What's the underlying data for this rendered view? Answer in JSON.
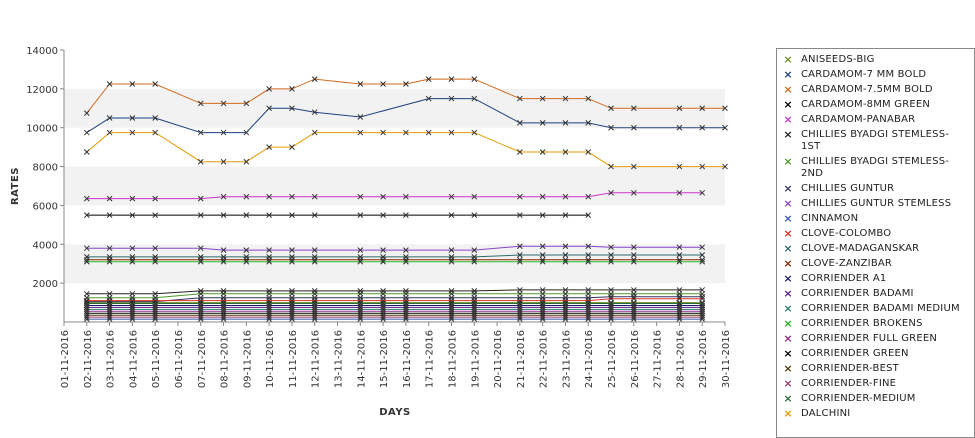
{
  "chart_data": {
    "type": "line",
    "xlabel": "DAYS",
    "ylabel": "RATES",
    "ylim": [
      0,
      14000
    ],
    "yticks": [
      2000,
      4000,
      6000,
      8000,
      10000,
      12000,
      14000
    ],
    "grid": "alternating horizontal bands",
    "legend_position": "right",
    "categories": [
      "01-11-2016",
      "02-11-2016",
      "03-11-2016",
      "04-11-2016",
      "05-11-2016",
      "06-11-2016",
      "07-11-2016",
      "08-11-2016",
      "09-11-2016",
      "10-11-2016",
      "11-11-2016",
      "12-11-2016",
      "13-11-2016",
      "14-11-2016",
      "15-11-2016",
      "16-11-2016",
      "17-11-2016",
      "18-11-2016",
      "19-11-2016",
      "20-11-2016",
      "21-11-2016",
      "22-11-2016",
      "23-11-2016",
      "24-11-2016",
      "25-11-2016",
      "26-11-2016",
      "27-11-2016",
      "28-11-2016",
      "29-11-2016",
      "30-11-2016"
    ],
    "series": [
      {
        "name": "ANISEEDS-BIG",
        "color": "#6b8e23",
        "values": [
          null,
          1000,
          1000,
          1000,
          1000,
          null,
          1000,
          1000,
          null,
          1000,
          1000,
          1000,
          null,
          1000,
          1000,
          1000,
          null,
          1000,
          1000,
          null,
          1000,
          1000,
          1000,
          1000,
          1000,
          1000,
          null,
          1000,
          1000,
          null
        ]
      },
      {
        "name": "CARDAMOM-7 MM BOLD",
        "color": "#1f3f7f",
        "values": [
          null,
          9750,
          10500,
          10500,
          10500,
          null,
          9750,
          9750,
          9750,
          11000,
          11000,
          10800,
          null,
          10550,
          null,
          null,
          11500,
          11500,
          11500,
          null,
          10250,
          10250,
          10250,
          10250,
          10000,
          10000,
          null,
          10000,
          10000,
          10000
        ]
      },
      {
        "name": "CARDAMOM-7.5MM BOLD",
        "color": "#d2691e",
        "values": [
          null,
          10750,
          12250,
          12250,
          12250,
          null,
          11250,
          11250,
          11250,
          12000,
          12000,
          12500,
          null,
          12250,
          12250,
          12250,
          12500,
          12500,
          12500,
          null,
          11500,
          11500,
          11500,
          11500,
          11000,
          11000,
          null,
          11000,
          11000,
          11000
        ]
      },
      {
        "name": "CARDAMOM-8MM GREEN",
        "color": "#000000",
        "values": [
          null,
          5500,
          5500,
          5500,
          5500,
          null,
          5500,
          5500,
          5500,
          5500,
          5500,
          5500,
          null,
          5500,
          5500,
          5500,
          null,
          5500,
          5500,
          null,
          5500,
          5500,
          5500,
          5500,
          null,
          null,
          null,
          null,
          null,
          null
        ]
      },
      {
        "name": "CARDAMOM-PANABAR",
        "color": "#cc33cc",
        "values": [
          null,
          6350,
          6350,
          6350,
          6350,
          null,
          6350,
          6450,
          6450,
          6450,
          6450,
          6450,
          null,
          6450,
          6450,
          6450,
          null,
          6450,
          6450,
          null,
          6450,
          6450,
          6450,
          6450,
          6650,
          6650,
          null,
          6650,
          6650,
          null
        ]
      },
      {
        "name": "CHILLIES BYADGI STEMLESS-1ST",
        "color": "#222222",
        "values": [
          null,
          1450,
          1450,
          1450,
          1450,
          null,
          1600,
          1600,
          null,
          1600,
          1600,
          1600,
          null,
          1600,
          1600,
          1600,
          null,
          1600,
          1600,
          null,
          1650,
          1650,
          1650,
          1650,
          1650,
          1650,
          null,
          1650,
          1650,
          null
        ]
      },
      {
        "name": "CHILLIES BYADGI STEMLESS-2ND",
        "color": "#4a9a2a",
        "values": [
          null,
          1250,
          1250,
          1250,
          1250,
          null,
          1450,
          1450,
          null,
          1450,
          1450,
          1450,
          null,
          1450,
          1450,
          1450,
          null,
          1450,
          1450,
          null,
          1450,
          1450,
          1450,
          1450,
          1450,
          1450,
          null,
          1450,
          1450,
          null
        ]
      },
      {
        "name": "CHILLIES GUNTUR",
        "color": "#333366",
        "values": [
          null,
          1050,
          1050,
          1050,
          1050,
          null,
          1250,
          1250,
          null,
          1250,
          1250,
          1250,
          null,
          1250,
          1250,
          1250,
          null,
          1250,
          1250,
          null,
          1250,
          1250,
          1250,
          1250,
          1300,
          1300,
          null,
          1300,
          1300,
          null
        ]
      },
      {
        "name": "CHILLIES GUNTUR STEMLESS",
        "color": "#8844cc",
        "values": [
          null,
          3800,
          3800,
          3800,
          3800,
          null,
          3800,
          3700,
          3700,
          3700,
          3700,
          3700,
          null,
          3700,
          3700,
          3700,
          null,
          3700,
          3700,
          null,
          3900,
          3900,
          3900,
          3900,
          3850,
          3850,
          null,
          3850,
          3850,
          null
        ]
      },
      {
        "name": "CINNAMON",
        "color": "#3355aa",
        "values": [
          null,
          150,
          150,
          150,
          150,
          null,
          150,
          150,
          null,
          150,
          150,
          150,
          null,
          150,
          150,
          150,
          null,
          150,
          150,
          null,
          150,
          150,
          150,
          150,
          150,
          150,
          null,
          150,
          150,
          null
        ]
      },
      {
        "name": "CLOVE-COLOMBO",
        "color": "#e03020",
        "values": [
          null,
          1100,
          1100,
          1100,
          1100,
          null,
          1100,
          1100,
          null,
          1100,
          1100,
          1100,
          null,
          1100,
          1100,
          1100,
          null,
          1100,
          1100,
          null,
          1100,
          1100,
          1100,
          1100,
          1200,
          1200,
          null,
          1200,
          1200,
          null
        ]
      },
      {
        "name": "CLOVE-MADAGANSKAR",
        "color": "#2a6a6a",
        "values": [
          null,
          3350,
          3350,
          3350,
          3350,
          null,
          3350,
          3350,
          3350,
          3350,
          3350,
          3350,
          null,
          3350,
          3350,
          3350,
          null,
          3350,
          3350,
          null,
          3450,
          3450,
          3450,
          3450,
          3450,
          3450,
          null,
          3450,
          3450,
          null
        ]
      },
      {
        "name": "CLOVE-ZANZIBAR",
        "color": "#8b2500",
        "values": [
          null,
          3200,
          3200,
          3200,
          3200,
          null,
          3200,
          3200,
          3200,
          3200,
          3200,
          3200,
          null,
          3200,
          3200,
          3200,
          null,
          3200,
          3200,
          null,
          3200,
          3200,
          3200,
          3200,
          3200,
          3200,
          null,
          3200,
          3200,
          null
        ]
      },
      {
        "name": "CORRIENDER A1",
        "color": "#1a1a66",
        "values": [
          null,
          850,
          850,
          850,
          850,
          null,
          850,
          850,
          null,
          850,
          850,
          850,
          null,
          850,
          850,
          850,
          null,
          850,
          850,
          null,
          850,
          850,
          850,
          850,
          850,
          850,
          null,
          850,
          850,
          null
        ]
      },
      {
        "name": "CORRIENDER BADAMI",
        "color": "#5a1a8a",
        "values": [
          null,
          750,
          750,
          750,
          750,
          null,
          750,
          750,
          null,
          750,
          750,
          750,
          null,
          750,
          750,
          750,
          null,
          750,
          750,
          null,
          750,
          750,
          750,
          750,
          750,
          750,
          null,
          750,
          750,
          null
        ]
      },
      {
        "name": "CORRIENDER BADAMI MEDIUM",
        "color": "#2a7a6a",
        "values": [
          null,
          650,
          650,
          650,
          650,
          null,
          650,
          650,
          null,
          650,
          650,
          650,
          null,
          650,
          650,
          650,
          null,
          650,
          650,
          null,
          650,
          650,
          650,
          650,
          650,
          650,
          null,
          650,
          650,
          null
        ]
      },
      {
        "name": "CORRIENDER BROKENS",
        "color": "#22bb22",
        "values": [
          null,
          3100,
          3100,
          3100,
          3100,
          null,
          3100,
          3100,
          3100,
          3100,
          3100,
          3100,
          null,
          3100,
          3100,
          3100,
          null,
          3100,
          3100,
          null,
          3100,
          3100,
          3100,
          3100,
          3100,
          3100,
          null,
          3100,
          3100,
          null
        ]
      },
      {
        "name": "CORRIENDER FULL GREEN",
        "color": "#8a2a8a",
        "values": [
          null,
          550,
          550,
          550,
          550,
          null,
          550,
          550,
          null,
          550,
          550,
          550,
          null,
          550,
          550,
          550,
          null,
          550,
          550,
          null,
          550,
          550,
          550,
          550,
          550,
          550,
          null,
          550,
          550,
          null
        ]
      },
      {
        "name": "CORRIENDER GREEN",
        "color": "#000000",
        "values": [
          null,
          450,
          450,
          450,
          450,
          null,
          450,
          450,
          null,
          450,
          450,
          450,
          null,
          450,
          450,
          450,
          null,
          450,
          450,
          null,
          450,
          450,
          450,
          450,
          450,
          450,
          null,
          450,
          450,
          null
        ]
      },
      {
        "name": "CORRIENDER-BEST",
        "color": "#4a3a0a",
        "values": [
          null,
          350,
          350,
          350,
          350,
          null,
          350,
          350,
          null,
          350,
          350,
          350,
          null,
          350,
          350,
          350,
          null,
          350,
          350,
          null,
          350,
          350,
          350,
          350,
          350,
          350,
          null,
          350,
          350,
          null
        ]
      },
      {
        "name": "CORRIENDER-FINE",
        "color": "#9a3a6a",
        "values": [
          null,
          250,
          250,
          250,
          250,
          null,
          250,
          250,
          null,
          250,
          250,
          250,
          null,
          250,
          250,
          250,
          null,
          250,
          250,
          null,
          250,
          250,
          250,
          250,
          250,
          250,
          null,
          250,
          250,
          null
        ]
      },
      {
        "name": "CORRIENDER-MEDIUM",
        "color": "#2a6a3a",
        "values": [
          null,
          950,
          950,
          950,
          950,
          null,
          950,
          950,
          null,
          950,
          950,
          950,
          null,
          950,
          950,
          950,
          null,
          950,
          950,
          null,
          950,
          950,
          950,
          950,
          950,
          950,
          null,
          950,
          950,
          null
        ]
      },
      {
        "name": "DALCHINI",
        "color": "#e69a00",
        "values": [
          null,
          8750,
          9750,
          9750,
          9750,
          null,
          8250,
          8250,
          8250,
          9000,
          9000,
          9750,
          null,
          9750,
          9750,
          9750,
          9750,
          9750,
          9750,
          null,
          8750,
          8750,
          8750,
          8750,
          8000,
          8000,
          null,
          8000,
          8000,
          8000
        ]
      }
    ]
  }
}
